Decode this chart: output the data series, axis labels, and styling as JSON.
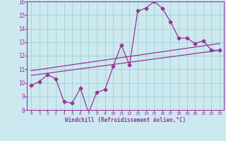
{
  "xlabel": "Windchill (Refroidissement éolien,°C)",
  "xlim": [
    -0.5,
    23.5
  ],
  "ylim": [
    8,
    16
  ],
  "xticks": [
    0,
    1,
    2,
    3,
    4,
    5,
    6,
    7,
    8,
    9,
    10,
    11,
    12,
    13,
    14,
    15,
    16,
    17,
    18,
    19,
    20,
    21,
    22,
    23
  ],
  "yticks": [
    8,
    9,
    10,
    11,
    12,
    13,
    14,
    15,
    16
  ],
  "bg_color": "#cce9f0",
  "line_color": "#993399",
  "grid_color": "#99cccc",
  "line1_x": [
    0,
    1,
    2,
    3,
    4,
    5,
    6,
    7,
    8,
    9,
    10,
    11,
    12,
    13,
    14,
    15,
    16,
    17,
    18,
    19,
    20,
    21,
    22,
    23
  ],
  "line1_y": [
    9.8,
    10.1,
    10.6,
    10.3,
    8.6,
    8.5,
    9.6,
    7.8,
    9.3,
    9.5,
    11.2,
    12.8,
    11.3,
    15.3,
    15.5,
    16.0,
    15.5,
    14.5,
    13.3,
    13.3,
    12.9,
    13.1,
    12.4,
    12.4
  ],
  "line2_x": [
    0,
    23
  ],
  "line2_y": [
    10.55,
    12.4
  ],
  "line3_x": [
    0,
    23
  ],
  "line3_y": [
    10.9,
    12.9
  ],
  "marker": "D",
  "markersize": 2.5,
  "linewidth": 0.9
}
